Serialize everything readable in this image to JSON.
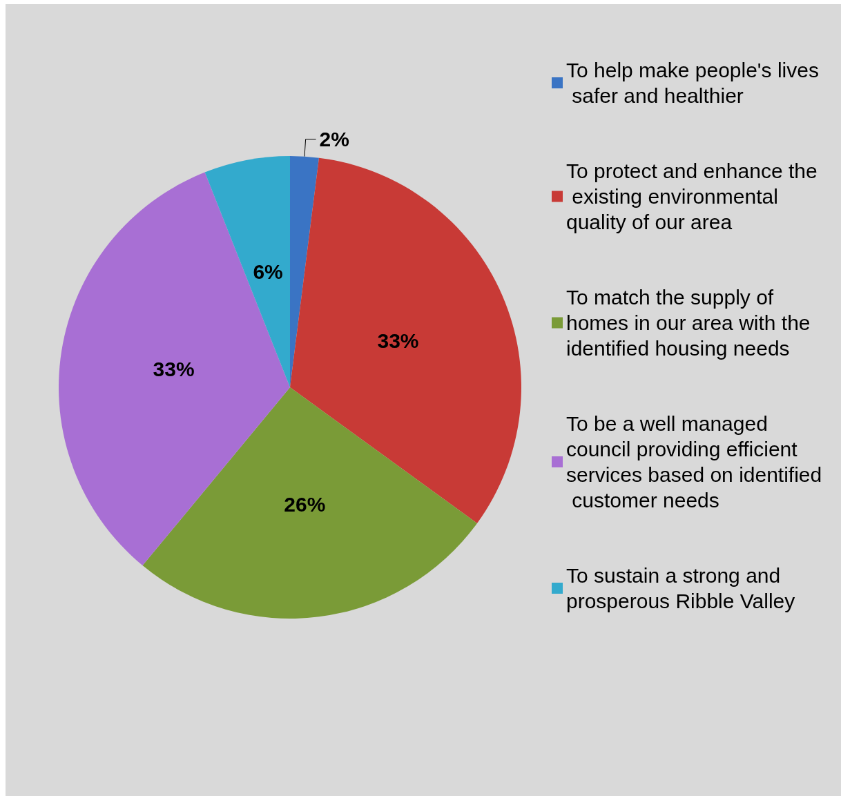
{
  "chart_data": {
    "type": "pie",
    "categories": [
      "To help make people's lives safer and healthier",
      "To protect and enhance the existing environmental quality of our area",
      "To match the supply of homes in our area with the identified housing needs",
      "To be a well managed council providing efficient services based on identified customer needs",
      "To sustain a strong and prosperous Ribble Valley"
    ],
    "values": [
      2,
      33,
      26,
      33,
      6
    ],
    "colors": [
      "#3a74c4",
      "#c83a36",
      "#7a9b37",
      "#a86fd4",
      "#33aacd"
    ],
    "value_labels": [
      "2%",
      "33%",
      "26%",
      "33%",
      "6%"
    ],
    "legend": "right"
  }
}
